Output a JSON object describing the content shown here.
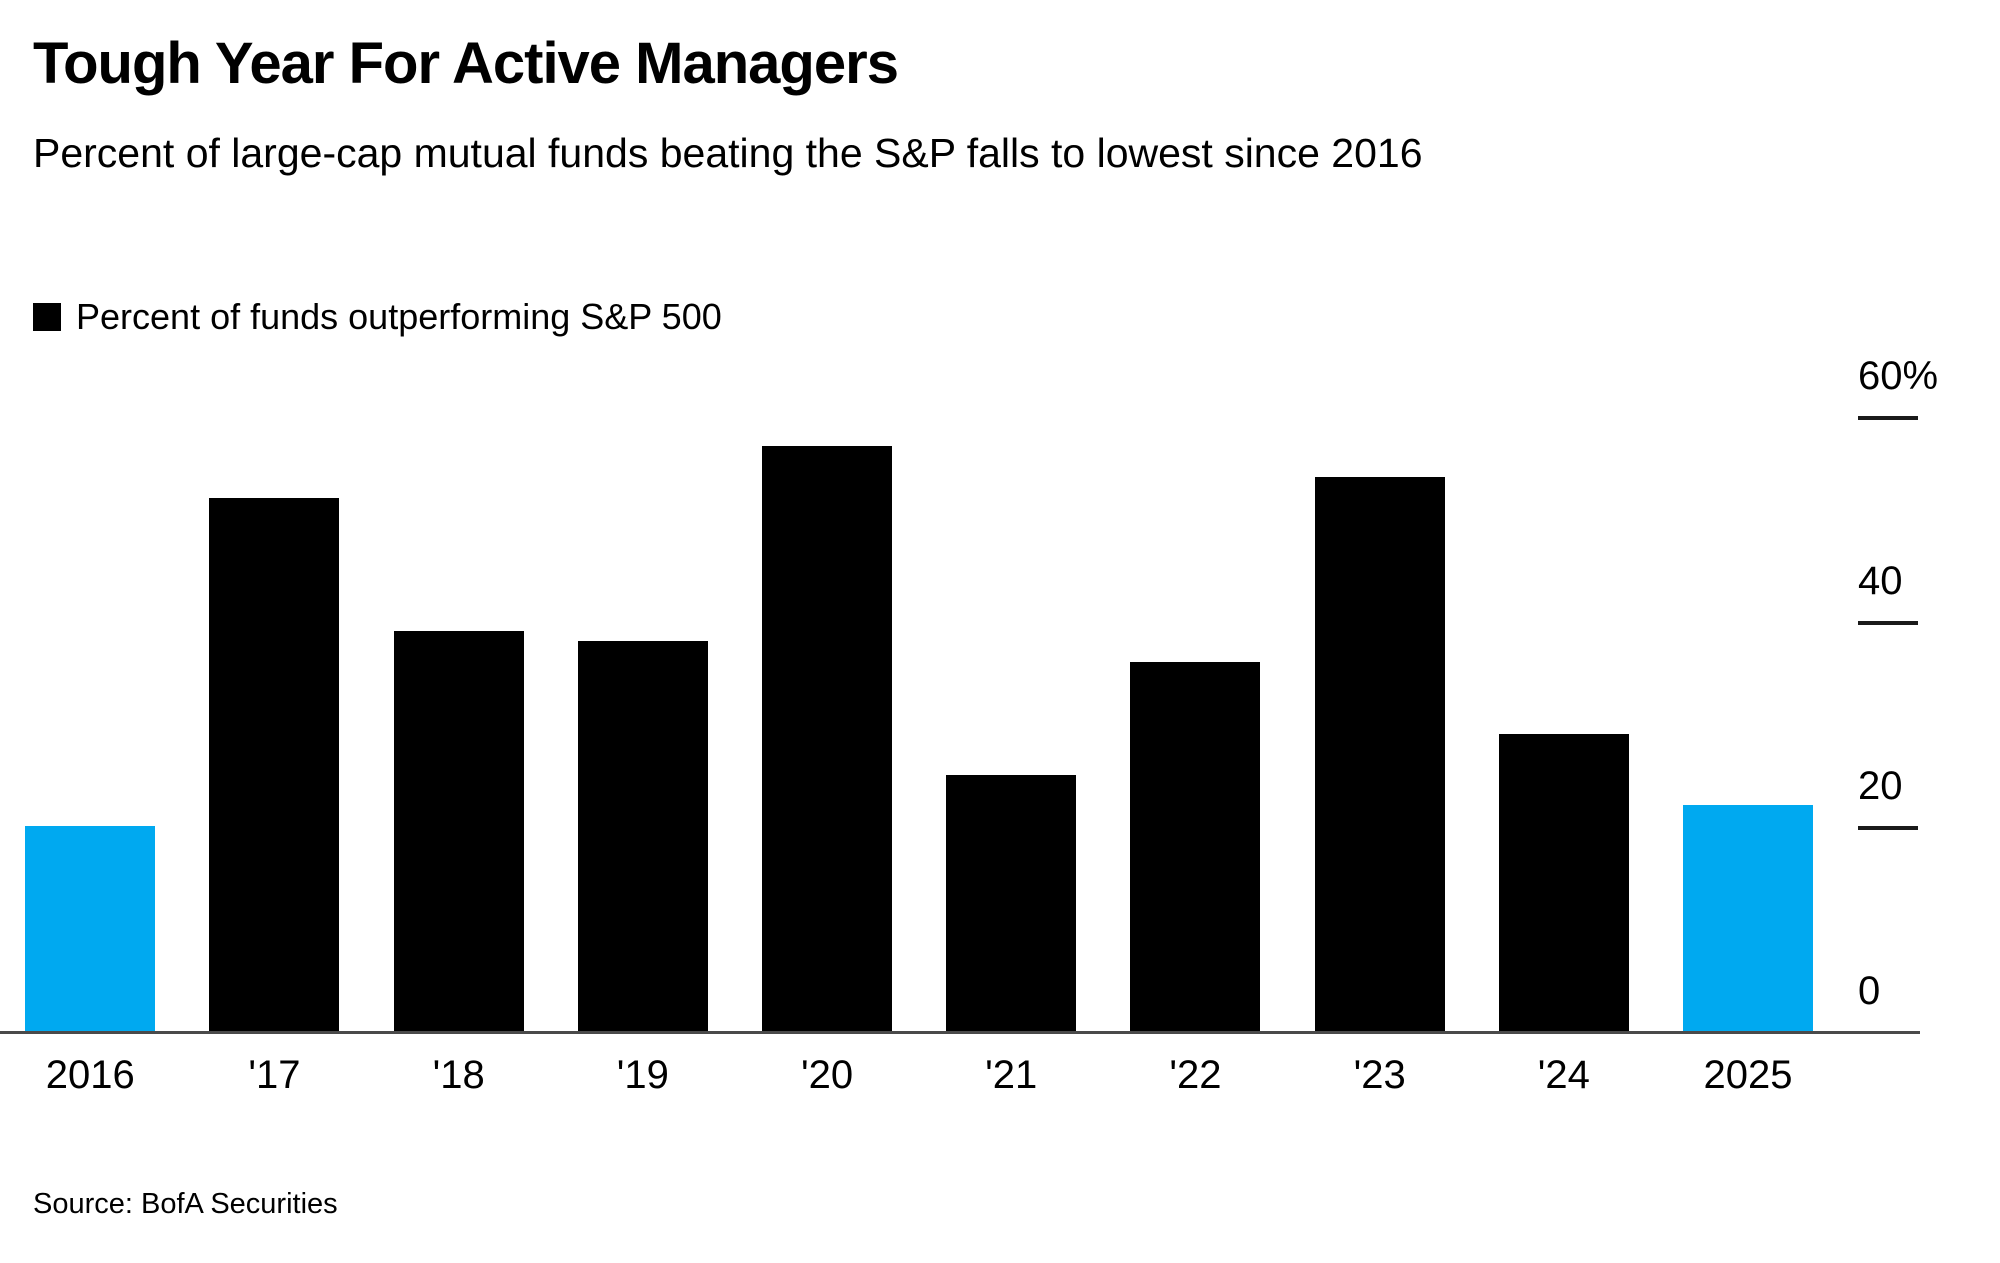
{
  "header": {
    "title": "Tough Year For Active Managers",
    "subtitle": "Percent of large-cap mutual funds beating the S&P falls to lowest since 2016"
  },
  "legend": {
    "label": "Percent of funds outperforming S&P 500",
    "swatch_color": "#000000"
  },
  "source": "Source: BofA Securities",
  "colors": {
    "background": "#ffffff",
    "default_bar": "#000000",
    "highlight_bar": "#00a9f0",
    "axis": "#4a4a4a",
    "text": "#000000"
  },
  "chart_data": {
    "type": "bar",
    "title": "Tough Year For Active Managers",
    "subtitle": "Percent of large-cap mutual funds beating the S&P falls to lowest since 2016",
    "categories": [
      "2016",
      "'17",
      "'18",
      "'19",
      "'20",
      "'21",
      "'22",
      "'23",
      "'24",
      "2025"
    ],
    "series": [
      {
        "name": "Percent of funds outperforming S&P 500",
        "values": [
          20,
          52,
          39,
          38,
          57,
          25,
          36,
          54,
          29,
          22
        ]
      }
    ],
    "highlighted_categories": [
      "2016",
      "2025"
    ],
    "highlight_note": "First and last bars shown in blue; all other years in black",
    "xlabel": "",
    "ylabel": "",
    "ylim": [
      0,
      60
    ],
    "yticks": [
      {
        "value": 60,
        "label": "60%"
      },
      {
        "value": 40,
        "label": "40"
      },
      {
        "value": 20,
        "label": "20"
      },
      {
        "value": 0,
        "label": "0"
      }
    ],
    "axis_side": "right",
    "grid": false,
    "legend_position": "top-left"
  }
}
